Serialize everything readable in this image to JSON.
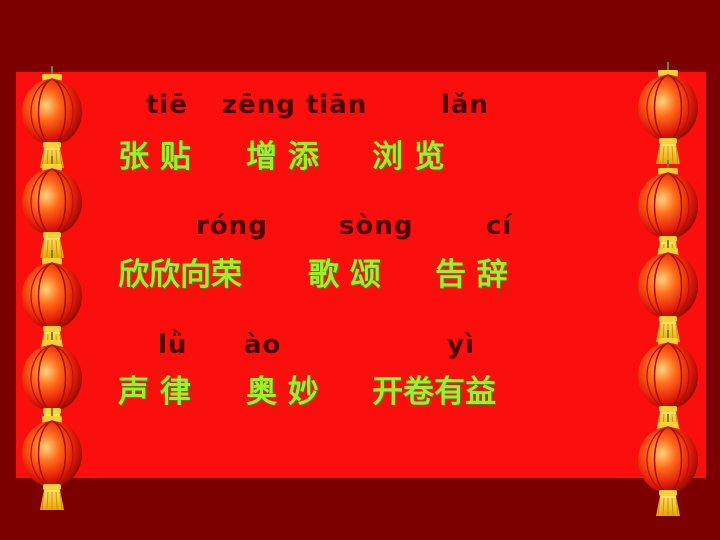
{
  "rows": [
    {
      "pinyin": [
        "tiē",
        "zēng tiān",
        "lǎn"
      ],
      "words": [
        "张 贴",
        "增 添",
        "浏 览"
      ]
    },
    {
      "pinyin": [
        "róng",
        "sòng",
        "cí"
      ],
      "words": [
        "欣欣向荣",
        "歌 颂",
        "告 辞"
      ]
    },
    {
      "pinyin": [
        "lǜ",
        "ào",
        "yì"
      ],
      "words": [
        "声 律",
        "奥 妙",
        "开卷有益"
      ]
    }
  ],
  "colors": {
    "background": "#7d0000",
    "panel": "#fa0f0c",
    "pinyin": "#4a0000",
    "hanzi": "#9bf22b"
  },
  "icons": [
    "red-lantern-icon"
  ]
}
